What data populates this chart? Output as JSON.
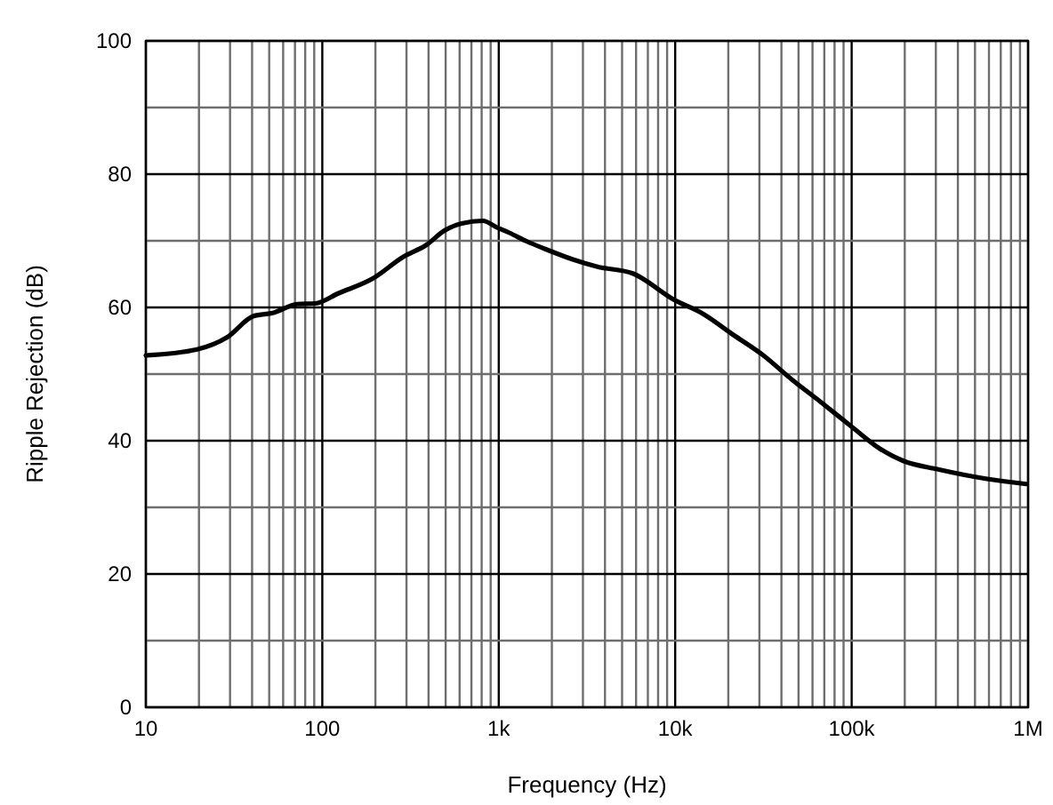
{
  "chart_data": {
    "type": "line",
    "xlabel": "Frequency (Hz)",
    "ylabel": "Ripple Rejection (dB)",
    "log": "x",
    "grid": true,
    "marker": "none",
    "line_style": "solid",
    "xlim": [
      10,
      1000000
    ],
    "ylim": [
      0,
      100
    ],
    "xticks": [
      {
        "value": 10,
        "label": "10"
      },
      {
        "value": 20,
        "label": null
      },
      {
        "value": 30,
        "label": null
      },
      {
        "value": 40,
        "label": null
      },
      {
        "value": 50,
        "label": null
      },
      {
        "value": 60,
        "label": null
      },
      {
        "value": 70,
        "label": null
      },
      {
        "value": 80,
        "label": null
      },
      {
        "value": 90,
        "label": null
      },
      {
        "value": 100,
        "label": "100"
      },
      {
        "value": 200,
        "label": null
      },
      {
        "value": 300,
        "label": null
      },
      {
        "value": 400,
        "label": null
      },
      {
        "value": 500,
        "label": null
      },
      {
        "value": 600,
        "label": null
      },
      {
        "value": 700,
        "label": null
      },
      {
        "value": 800,
        "label": null
      },
      {
        "value": 900,
        "label": null
      },
      {
        "value": 1000,
        "label": "1k"
      },
      {
        "value": 2000,
        "label": null
      },
      {
        "value": 3000,
        "label": null
      },
      {
        "value": 4000,
        "label": null
      },
      {
        "value": 5000,
        "label": null
      },
      {
        "value": 6000,
        "label": null
      },
      {
        "value": 7000,
        "label": null
      },
      {
        "value": 8000,
        "label": null
      },
      {
        "value": 9000,
        "label": null
      },
      {
        "value": 10000,
        "label": "10k"
      },
      {
        "value": 20000,
        "label": null
      },
      {
        "value": 30000,
        "label": null
      },
      {
        "value": 40000,
        "label": null
      },
      {
        "value": 50000,
        "label": null
      },
      {
        "value": 60000,
        "label": null
      },
      {
        "value": 70000,
        "label": null
      },
      {
        "value": 80000,
        "label": null
      },
      {
        "value": 90000,
        "label": null
      },
      {
        "value": 100000,
        "label": "100k"
      },
      {
        "value": 200000,
        "label": null
      },
      {
        "value": 300000,
        "label": null
      },
      {
        "value": 400000,
        "label": null
      },
      {
        "value": 500000,
        "label": null
      },
      {
        "value": 600000,
        "label": null
      },
      {
        "value": 700000,
        "label": null
      },
      {
        "value": 800000,
        "label": null
      },
      {
        "value": 900000,
        "label": null
      },
      {
        "value": 1000000,
        "label": "1M"
      }
    ],
    "yticks": [
      0,
      {
        "value": 10,
        "label": null
      },
      20,
      {
        "value": 30,
        "label": null
      },
      40,
      {
        "value": 50,
        "label": null
      },
      60,
      {
        "value": 70,
        "label": null
      },
      80,
      {
        "value": 90,
        "label": null
      },
      100
    ],
    "series": [
      {
        "color": "#000000",
        "x": [
          10,
          19.5,
          28.8,
          40.7,
          53,
          72,
          91,
          123,
          195,
          288,
          390,
          490,
          617,
          813,
          977,
          1148,
          1445,
          1820,
          2630,
          3630,
          5750,
          9770,
          14450,
          21300,
          31600,
          45700,
          67600,
          100000,
          144500,
          195000,
          309000,
          575000,
          977000
        ],
        "values": [
          52.8,
          53.7,
          55.5,
          58.7,
          59.2,
          60.5,
          60.6,
          62.1,
          64.4,
          67.6,
          69.4,
          71.5,
          72.6,
          73,
          72,
          71.2,
          69.9,
          68.8,
          67.2,
          66.1,
          65.1,
          61.2,
          59,
          55.9,
          52.8,
          49.2,
          45.7,
          42.1,
          38.8,
          37,
          35.7,
          34.3,
          33.5
        ]
      }
    ]
  }
}
